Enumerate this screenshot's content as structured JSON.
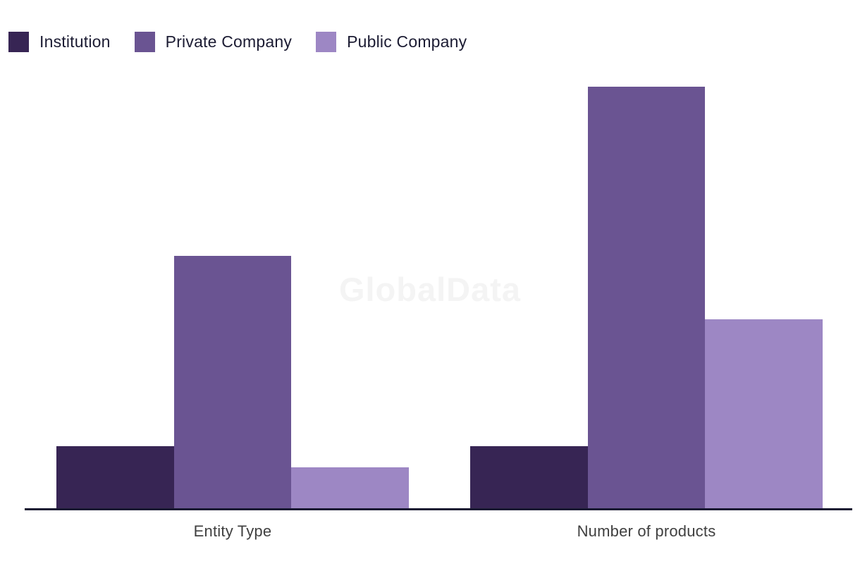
{
  "watermark": {
    "text": "GlobalData"
  },
  "colors": {
    "institution": "#372554",
    "private_company": "#6a5492",
    "public_company": "#9d87c4",
    "axis_line": "#1a1a32",
    "legend_text": "#1c1c33",
    "axis_label_text": "#404040",
    "watermark_text": "#f4f4f4",
    "background": "#ffffff"
  },
  "chart_data": {
    "type": "bar",
    "title": "",
    "xlabel": "",
    "ylabel": "",
    "categories": [
      "Entity Type",
      "Number of products"
    ],
    "series": [
      {
        "name": "Institution",
        "color": "#372554",
        "values": [
          3,
          3
        ]
      },
      {
        "name": "Private Company",
        "color": "#6a5492",
        "values": [
          12,
          20
        ]
      },
      {
        "name": "Public Company",
        "color": "#9d87c4",
        "values": [
          2,
          9
        ]
      }
    ],
    "ylim": [
      0,
      20
    ],
    "y_axis_visible": false,
    "grid": false,
    "legend_position": "top-left",
    "watermark": "GlobalData"
  }
}
